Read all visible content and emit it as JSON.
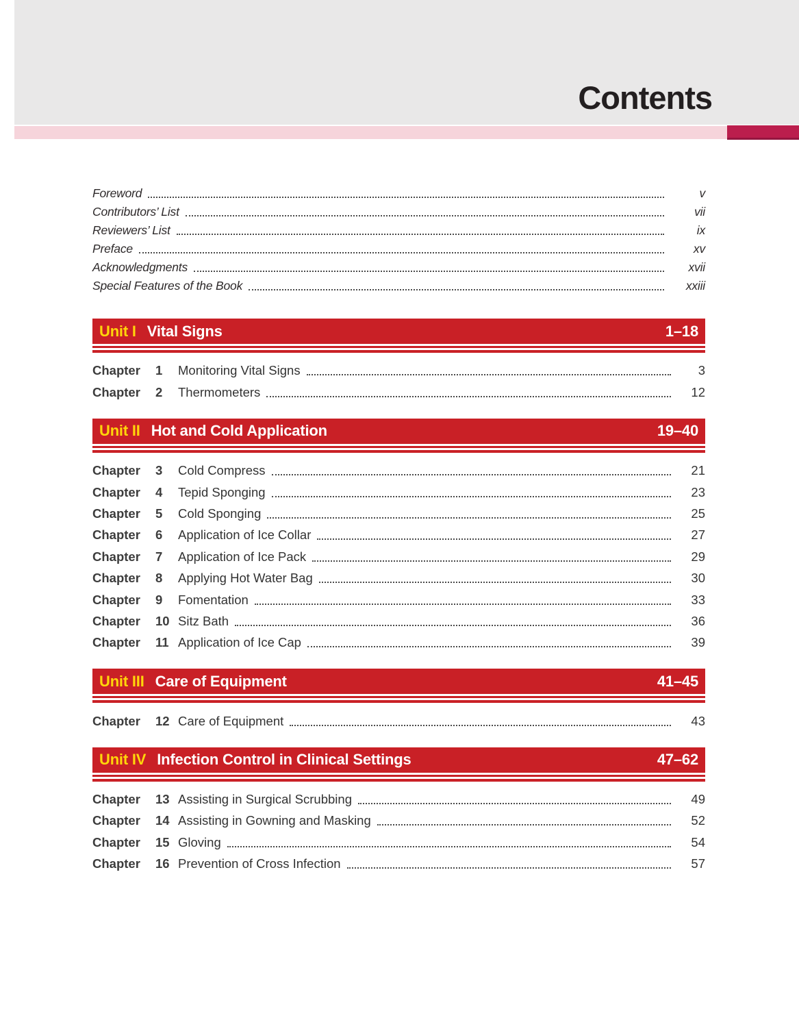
{
  "header": {
    "title": "Contents"
  },
  "chapter_word": "Chapter",
  "front_matter": {
    "rows": [
      {
        "label": "Foreword",
        "page": "v"
      },
      {
        "label": "Contributors’ List",
        "page": "vii"
      },
      {
        "label": "Reviewers’ List",
        "page": "ix"
      },
      {
        "label": "Preface",
        "page": "xv"
      },
      {
        "label": "Acknowledgments",
        "page": "xvii"
      },
      {
        "label": "Special Features of the Book",
        "page": "xxiii"
      }
    ]
  },
  "units": [
    {
      "unit_label": "Unit I",
      "title": "Vital Signs",
      "page_range": "1–18",
      "chapters": [
        {
          "number": "1",
          "title": "Monitoring Vital Signs",
          "page": "3"
        },
        {
          "number": "2",
          "title": "Thermometers",
          "page": "12"
        }
      ]
    },
    {
      "unit_label": "Unit II",
      "title": "Hot and Cold Application",
      "page_range": "19–40",
      "chapters": [
        {
          "number": "3",
          "title": "Cold Compress",
          "page": "21"
        },
        {
          "number": "4",
          "title": "Tepid Sponging",
          "page": "23"
        },
        {
          "number": "5",
          "title": "Cold Sponging",
          "page": "25"
        },
        {
          "number": "6",
          "title": "Application of Ice Collar",
          "page": "27"
        },
        {
          "number": "7",
          "title": "Application of Ice Pack",
          "page": "29"
        },
        {
          "number": "8",
          "title": "Applying Hot Water Bag",
          "page": "30"
        },
        {
          "number": "9",
          "title": "Fomentation",
          "page": "33"
        },
        {
          "number": "10",
          "title": "Sitz Bath",
          "page": "36"
        },
        {
          "number": "11",
          "title": "Application of Ice Cap",
          "page": "39"
        }
      ]
    },
    {
      "unit_label": "Unit III",
      "title": "Care of Equipment",
      "page_range": "41–45",
      "chapters": [
        {
          "number": "12",
          "title": "Care of Equipment",
          "page": "43"
        }
      ]
    },
    {
      "unit_label": "Unit IV",
      "title": "Infection Control in Clinical Settings",
      "page_range": "47–62",
      "chapters": [
        {
          "number": "13",
          "title": "Assisting in Surgical Scrubbing",
          "page": "49"
        },
        {
          "number": "14",
          "title": "Assisting in Gowning and Masking",
          "page": "52"
        },
        {
          "number": "15",
          "title": "Gloving",
          "page": "54"
        },
        {
          "number": "16",
          "title": "Prevention of Cross Infection",
          "page": "57"
        }
      ]
    }
  ],
  "colors": {
    "banner_red": "#c92026",
    "unit_yellow": "#ffd60a",
    "pink_band": "#f6d4db",
    "crimson_block": "#bb1e4d",
    "header_gray": "#e9e8e8",
    "title_ink": "#231f20"
  }
}
